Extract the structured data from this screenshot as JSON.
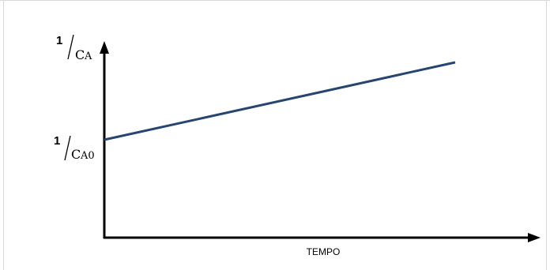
{
  "chart_data": {
    "type": "line",
    "xlabel": "TEMPO",
    "y_axis_label": {
      "numerator": "1",
      "symbol": "C",
      "subscript": "A"
    },
    "y_intercept_label": {
      "numerator": "1",
      "symbol": "C",
      "subscript": "A0"
    },
    "series": [
      {
        "color": "#27456f",
        "points": [
          {
            "x": 0.0,
            "y": 0.0
          },
          {
            "x": 1.0,
            "y": 1.0
          }
        ]
      }
    ],
    "grid": false,
    "legend": "none"
  },
  "colors": {
    "axis": "#000000",
    "series_line": "#27456f",
    "border": "#d9d9d9"
  }
}
